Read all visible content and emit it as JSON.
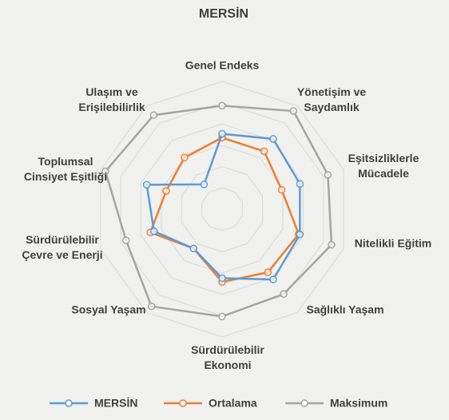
{
  "chart_data": {
    "type": "radar",
    "title": "MERSİN",
    "categories": [
      "Genel Endeks",
      "Yönetişim ve Saydamlık",
      "Eşitsizliklerle Mücadele",
      "Nitelikli Eğitim",
      "Sağlıklı Yaşam",
      "Sürdürülebilir Ekonomi",
      "Sosyal Yaşam",
      "Sürdürülebilir Çevre ve Enerji",
      "Toplumsal Cinsiyet Eşitliği",
      "Ulaşım ve Erişilebilirlik"
    ],
    "series": [
      {
        "name": "MERSİN",
        "color": "#5b9bd5",
        "values": [
          59,
          68,
          64,
          64,
          68,
          54,
          38,
          56,
          62,
          24
        ]
      },
      {
        "name": "Ortalama",
        "color": "#ed7d31",
        "values": [
          56,
          56,
          49,
          63,
          61,
          57,
          38,
          59,
          46,
          50
        ]
      },
      {
        "name": "Maksimum",
        "color": "#a5a5a5",
        "values": [
          81,
          95,
          87,
          90,
          82,
          84,
          94,
          79,
          96,
          91
        ]
      }
    ],
    "ylim": [
      0,
      100
    ],
    "legend": "bottom"
  }
}
